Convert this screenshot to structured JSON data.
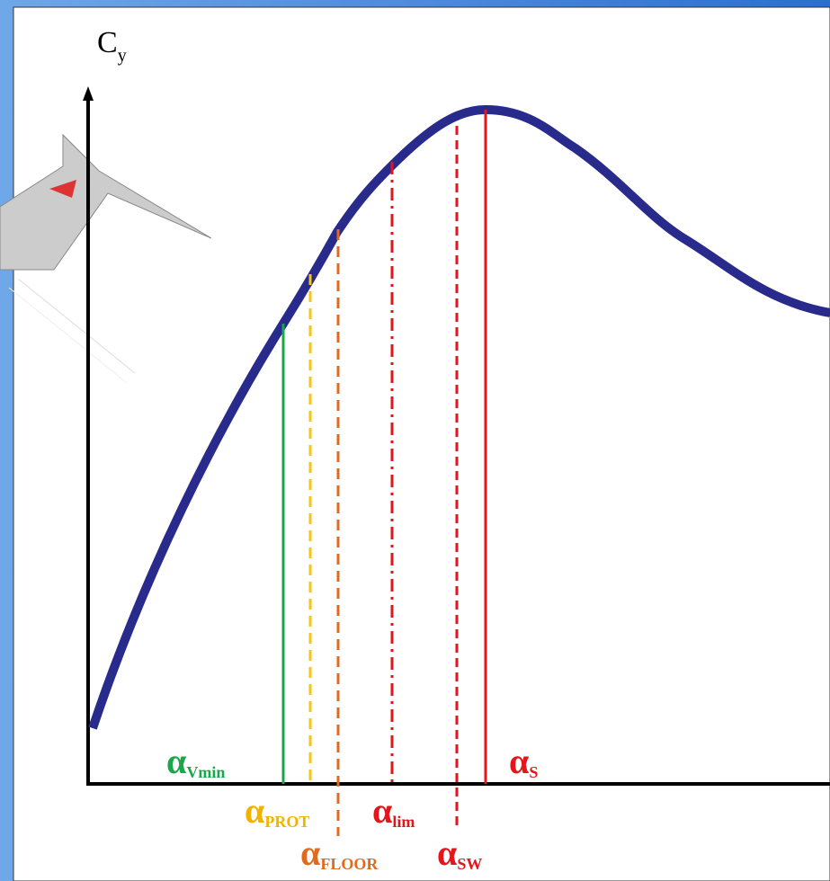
{
  "y_axis_label": {
    "main": "C",
    "sub": "y"
  },
  "markers": [
    {
      "symbol": "α",
      "sub": "Vmin"
    },
    {
      "symbol": "α",
      "sub": "PROT"
    },
    {
      "symbol": "α",
      "sub": "FLOOR"
    },
    {
      "symbol": "α",
      "sub": "lim"
    },
    {
      "symbol": "α",
      "sub": "SW"
    },
    {
      "symbol": "α",
      "sub": "S"
    }
  ]
}
